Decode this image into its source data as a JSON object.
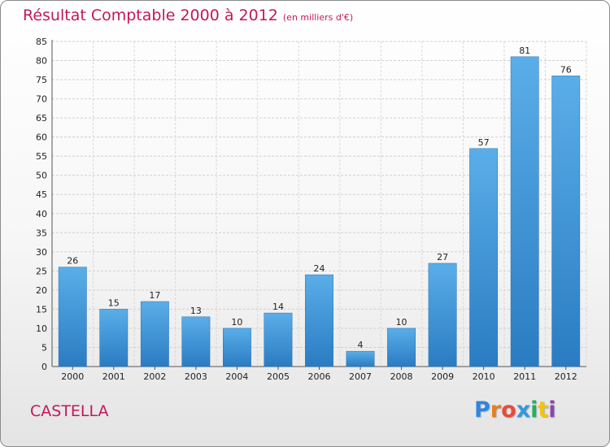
{
  "chart_data": {
    "type": "bar",
    "title": "Résultat Comptable 2000 à 2012",
    "subtitle": "(en milliers d'€)",
    "categories": [
      "2000",
      "2001",
      "2002",
      "2003",
      "2004",
      "2005",
      "2006",
      "2007",
      "2008",
      "2009",
      "2010",
      "2011",
      "2012"
    ],
    "values": [
      26,
      15,
      17,
      13,
      10,
      14,
      24,
      4,
      10,
      27,
      57,
      81,
      76
    ],
    "ylim": [
      0,
      85
    ],
    "yticks": [
      0,
      5,
      10,
      15,
      20,
      25,
      30,
      35,
      40,
      45,
      50,
      55,
      60,
      65,
      70,
      75,
      80,
      85
    ],
    "grid": true,
    "bar_color": "#3b8fd3",
    "xlabel": "",
    "ylabel": ""
  },
  "town": "CASTELLA",
  "logo": {
    "letters": [
      "P",
      "r",
      "o",
      "x",
      "i",
      "t",
      "i"
    ],
    "colors": [
      "#2e86de",
      "#e67e22",
      "#e74c3c",
      "#3498db",
      "#27ae60",
      "#f1c40f",
      "#8e44ad"
    ]
  }
}
